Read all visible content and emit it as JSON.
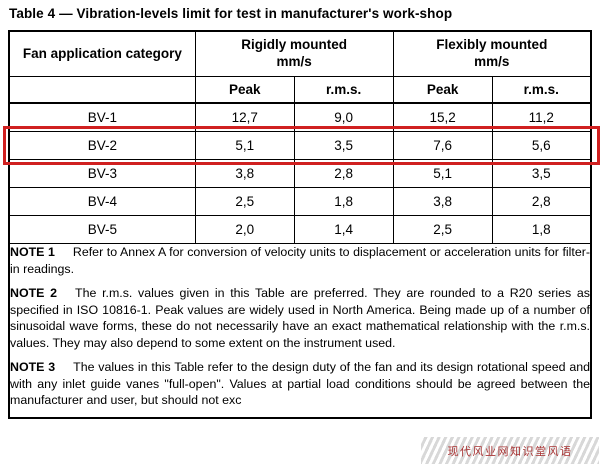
{
  "title": "Table 4 — Vibration-levels limit for test in manufacturer's work-shop",
  "table": {
    "category_header": "Fan application category",
    "groups": [
      {
        "label": "Rigidly mounted",
        "unit": "mm/s"
      },
      {
        "label": "Flexibly mounted",
        "unit": "mm/s"
      }
    ],
    "sub_headers": [
      "Peak",
      "r.m.s.",
      "Peak",
      "r.m.s."
    ],
    "rows": [
      {
        "category": "BV-1",
        "values": [
          "12,7",
          "9,0",
          "15,2",
          "11,2"
        ],
        "highlighted": false
      },
      {
        "category": "BV-2",
        "values": [
          "5,1",
          "3,5",
          "7,6",
          "5,6"
        ],
        "highlighted": true
      },
      {
        "category": "BV-3",
        "values": [
          "3,8",
          "2,8",
          "5,1",
          "3,5"
        ],
        "highlighted": false
      },
      {
        "category": "BV-4",
        "values": [
          "2,5",
          "1,8",
          "3,8",
          "2,8"
        ],
        "highlighted": false
      },
      {
        "category": "BV-5",
        "values": [
          "2,0",
          "1,4",
          "2,5",
          "1,8"
        ],
        "highlighted": false
      }
    ]
  },
  "notes": [
    {
      "label": "NOTE 1",
      "text": "Refer to Annex A for conversion of velocity units to displacement or acceleration units for filter-in readings."
    },
    {
      "label": "NOTE 2",
      "text": "The r.m.s. values given in this Table are preferred. They are rounded to a R20 series as specified in ISO 10816-1. Peak values are widely used in North America. Being made up of a number of sinusoidal wave forms, these do not necessarily have an exact mathematical relationship with the r.m.s. values. They may also depend to some extent on the instrument used."
    },
    {
      "label": "NOTE 3",
      "text": "The values in this Table refer to the design duty of the fan and its design rotational speed and with any inlet guide vanes \"full-open\". Values at partial load conditions should be agreed between the manufacturer and user, but should not exc"
    }
  ],
  "highlight": {
    "color": "#d02020"
  },
  "watermark": {
    "text": "现代风业网知识堂风语"
  }
}
